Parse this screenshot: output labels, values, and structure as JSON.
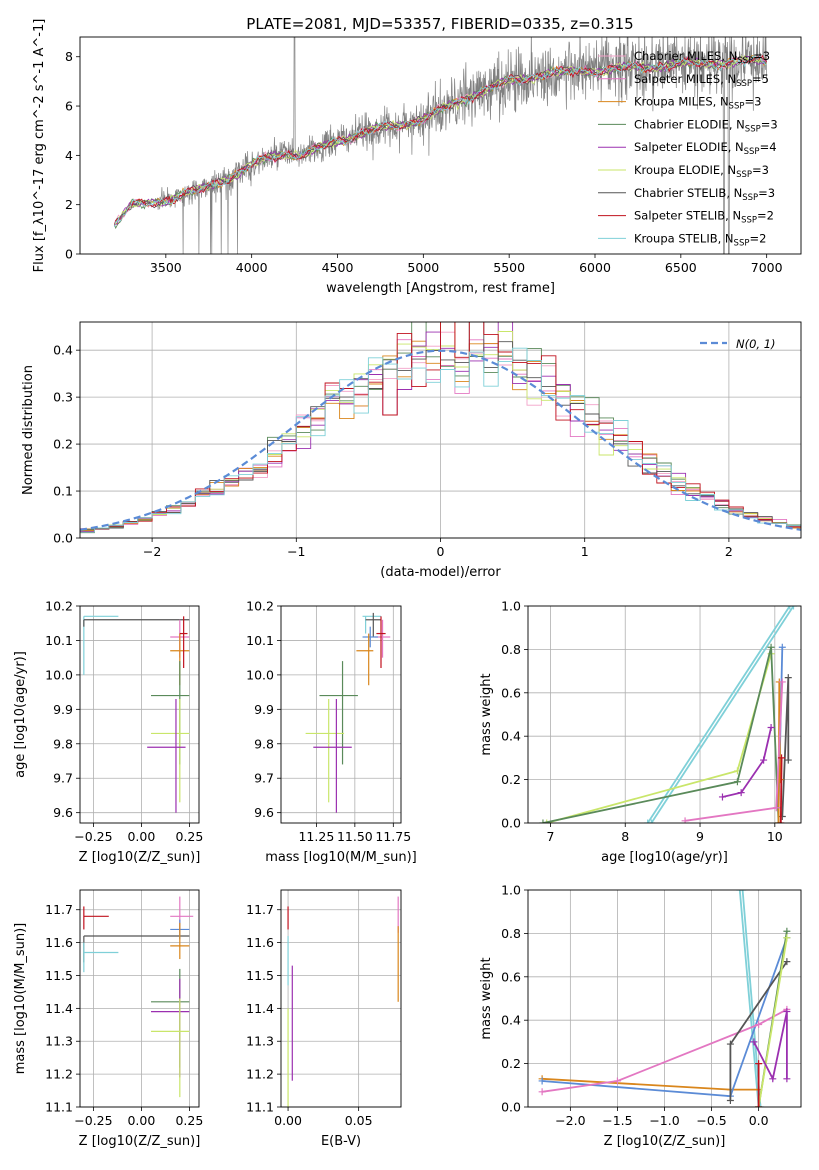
{
  "colors": {
    "data_gray": "#808080",
    "normal_curve": "#5b8bd6",
    "series": {
      "chabrier_miles": "#f2a0c8",
      "salpeter_miles": "#e377c2",
      "kroupa_miles": "#d9861c",
      "chabrier_elodie": "#5a8a5a",
      "salpeter_elodie": "#9b30b0",
      "kroupa_elodie": "#c9e66a",
      "chabrier_stelib": "#555555",
      "salpeter_stelib": "#c0121e",
      "kroupa_stelib": "#7fd0d8",
      "blue": "#5b8bd6"
    }
  },
  "chart_data": [
    {
      "id": "spectrum",
      "type": "line",
      "title": "PLATE=2081, MJD=53357, FIBERID=0335, z=0.315",
      "xlabel": "wavelength [Angstrom, rest frame]",
      "ylabel": "Flux [f_λ10^-17 erg cm^-2 s^-1 A^-1]",
      "xlim": [
        3000,
        7200
      ],
      "ylim": [
        0,
        8.8
      ],
      "xticks": [
        3500,
        4000,
        4500,
        5000,
        5500,
        6000,
        6500,
        7000
      ],
      "yticks": [
        0,
        2,
        4,
        6,
        8
      ],
      "legend_position": "top-right",
      "legend": [
        {
          "key": "chabrier_miles",
          "name": "Chabrier MILES, N",
          "sub": "SSP",
          "n": "=3"
        },
        {
          "key": "salpeter_miles",
          "name": "Salpeter MILES, N",
          "sub": "SSP",
          "n": "=5"
        },
        {
          "key": "kroupa_miles",
          "name": "Kroupa MILES, N",
          "sub": "SSP",
          "n": "=3"
        },
        {
          "key": "chabrier_elodie",
          "name": "Chabrier ELODIE, N",
          "sub": "SSP",
          "n": "=3"
        },
        {
          "key": "salpeter_elodie",
          "name": "Salpeter ELODIE, N",
          "sub": "SSP",
          "n": "=4"
        },
        {
          "key": "kroupa_elodie",
          "name": "Kroupa ELODIE, N",
          "sub": "SSP",
          "n": "=3"
        },
        {
          "key": "chabrier_stelib",
          "name": "Chabrier STELIB, N",
          "sub": "SSP",
          "n": "=3"
        },
        {
          "key": "salpeter_stelib",
          "name": "Salpeter STELIB, N",
          "sub": "SSP",
          "n": "=2"
        },
        {
          "key": "kroupa_stelib",
          "name": "Kroupa STELIB, N",
          "sub": "SSP",
          "n": "=2"
        }
      ],
      "model_continuum": {
        "x": [
          3200,
          3300,
          3500,
          3700,
          3900,
          4000,
          4100,
          4200,
          4300,
          4400,
          4500,
          4700,
          4900,
          5000,
          5100,
          5300,
          5500,
          5700,
          5900,
          6100,
          6300,
          6500,
          6700,
          6900,
          7000
        ],
        "y": [
          1.2,
          1.95,
          2.2,
          2.6,
          3.2,
          3.6,
          3.9,
          4.1,
          4.0,
          4.3,
          4.6,
          5.0,
          5.3,
          5.5,
          5.8,
          6.5,
          7.0,
          7.3,
          7.4,
          7.5,
          7.6,
          7.7,
          7.75,
          7.8,
          7.85
        ]
      }
    },
    {
      "id": "residuals",
      "type": "histogram",
      "xlabel": "(data-model)/error",
      "ylabel": "Normed distribution",
      "xlim": [
        -2.5,
        2.5
      ],
      "ylim": [
        0,
        0.46
      ],
      "xticks": [
        -2,
        -1,
        0,
        1,
        2
      ],
      "yticks": [
        0.0,
        0.1,
        0.2,
        0.3,
        0.4
      ],
      "grid": true,
      "legend_position": "top-right",
      "legend_label": "N(0, 1)",
      "bins": 50
    },
    {
      "id": "age_vs_Z",
      "type": "errorbar",
      "xlabel": "Z [log10(Z/Z_sun)]",
      "ylabel": "age  [log10(age/yr)]",
      "xlim": [
        -0.32,
        0.3
      ],
      "ylim": [
        9.57,
        10.2
      ],
      "xticks": [
        -0.25,
        0.0,
        0.25
      ],
      "yticks": [
        9.6,
        9.7,
        9.8,
        9.9,
        10.0,
        10.1,
        10.2
      ],
      "grid": true,
      "points": [
        {
          "series": "kroupa_stelib",
          "x": -0.3,
          "y": 10.17,
          "xerr": [
            0,
            0.18
          ],
          "yerr": [
            0.17,
            0.0
          ]
        },
        {
          "series": "chabrier_stelib",
          "x": -0.3,
          "y": 10.16,
          "xerr": [
            0,
            0.55
          ],
          "yerr": [
            0.02,
            0.0
          ]
        },
        {
          "series": "salpeter_miles",
          "x": 0.2,
          "y": 10.11,
          "xerr": [
            0.05,
            0.05
          ],
          "yerr": [
            0.06,
            0.05
          ]
        },
        {
          "series": "kroupa_miles",
          "x": 0.2,
          "y": 10.07,
          "xerr": [
            0.05,
            0.05
          ],
          "yerr": [
            0.1,
            0.05
          ]
        },
        {
          "series": "salpeter_stelib",
          "x": 0.22,
          "y": 10.12,
          "xerr": [
            0.02,
            0.02
          ],
          "yerr": [
            0.1,
            0.05
          ]
        },
        {
          "series": "chabrier_elodie",
          "x": 0.2,
          "y": 9.94,
          "xerr": [
            0.15,
            0.05
          ],
          "yerr": [
            0.2,
            0.1
          ]
        },
        {
          "series": "kroupa_elodie",
          "x": 0.2,
          "y": 9.83,
          "xerr": [
            0.15,
            0.05
          ],
          "yerr": [
            0.2,
            0.1
          ]
        },
        {
          "series": "salpeter_elodie",
          "x": 0.18,
          "y": 9.79,
          "xerr": [
            0.15,
            0.05
          ],
          "yerr": [
            0.19,
            0.14
          ]
        }
      ]
    },
    {
      "id": "age_vs_mass",
      "type": "errorbar",
      "xlabel": "mass [log10(M/M_sun)]",
      "xlim": [
        11.02,
        11.8
      ],
      "ylim": [
        9.57,
        10.2
      ],
      "xticks": [
        11.25,
        11.5,
        11.75
      ],
      "yticks": [
        9.6,
        9.7,
        9.8,
        9.9,
        10.0,
        10.1,
        10.2
      ],
      "grid": true,
      "points": [
        {
          "series": "kroupa_stelib",
          "x": 11.57,
          "y": 10.17,
          "xerr": [
            0.02,
            0.1
          ],
          "yerr": [
            0.05,
            0.0
          ]
        },
        {
          "series": "chabrier_stelib",
          "x": 11.62,
          "y": 10.16,
          "xerr": [
            0.05,
            0.05
          ],
          "yerr": [
            0.05,
            0.02
          ]
        },
        {
          "series": "salpeter_miles",
          "x": 11.68,
          "y": 10.11,
          "xerr": [
            0.05,
            0.05
          ],
          "yerr": [
            0.06,
            0.05
          ]
        },
        {
          "series": "blue",
          "x": 11.6,
          "y": 10.11,
          "xerr": [
            0.05,
            0.05
          ],
          "yerr": [
            0.03,
            0.03
          ]
        },
        {
          "series": "kroupa_miles",
          "x": 11.59,
          "y": 10.07,
          "xerr": [
            0.08,
            0.03
          ],
          "yerr": [
            0.1,
            0.05
          ]
        },
        {
          "series": "salpeter_stelib",
          "x": 11.67,
          "y": 10.12,
          "xerr": [
            0.03,
            0.03
          ],
          "yerr": [
            0.1,
            0.05
          ]
        },
        {
          "series": "chabrier_elodie",
          "x": 11.42,
          "y": 9.94,
          "xerr": [
            0.15,
            0.1
          ],
          "yerr": [
            0.2,
            0.1
          ]
        },
        {
          "series": "kroupa_elodie",
          "x": 11.33,
          "y": 9.83,
          "xerr": [
            0.15,
            0.1
          ],
          "yerr": [
            0.2,
            0.1
          ]
        },
        {
          "series": "salpeter_elodie",
          "x": 11.38,
          "y": 9.79,
          "xerr": [
            0.15,
            0.1
          ],
          "yerr": [
            0.19,
            0.14
          ]
        }
      ]
    },
    {
      "id": "mass_weight_vs_age",
      "type": "line",
      "xlabel": "age  [log10(age/yr)]",
      "ylabel": "mass weight",
      "xlim": [
        6.7,
        10.35
      ],
      "ylim": [
        0,
        1.0
      ],
      "xticks": [
        7,
        8,
        9,
        10
      ],
      "yticks": [
        0.0,
        0.2,
        0.4,
        0.6,
        0.8,
        1.0
      ],
      "grid": true,
      "series": [
        {
          "series": "kroupa_stelib",
          "x": [
            8.3,
            10.2
          ],
          "y": [
            0.0,
            1.0
          ]
        },
        {
          "series": "kroupa_stelib",
          "x": [
            8.35,
            10.25
          ],
          "y": [
            0.0,
            1.0
          ]
        },
        {
          "series": "kroupa_elodie",
          "x": [
            6.95,
            9.5,
            9.95
          ],
          "y": [
            0.0,
            0.24,
            0.78
          ]
        },
        {
          "series": "chabrier_elodie",
          "x": [
            6.9,
            9.5,
            9.95,
            10.05
          ],
          "y": [
            0.0,
            0.19,
            0.81,
            0.0
          ]
        },
        {
          "series": "chabrier_stelib",
          "x": [
            10.1,
            10.18,
            10.18
          ],
          "y": [
            0.03,
            0.67,
            0.29
          ]
        },
        {
          "series": "salpeter_elodie",
          "x": [
            9.3,
            9.55,
            9.85,
            9.95
          ],
          "y": [
            0.12,
            0.14,
            0.29,
            0.44
          ]
        },
        {
          "series": "blue",
          "x": [
            10.05,
            10.1
          ],
          "y": [
            0.07,
            0.81
          ]
        },
        {
          "series": "kroupa_miles",
          "x": [
            10.05,
            10.06,
            10.07
          ],
          "y": [
            0.0,
            0.65,
            0.2
          ]
        },
        {
          "series": "salpeter_miles",
          "x": [
            8.8,
            10.02,
            10.1
          ],
          "y": [
            0.01,
            0.07,
            0.65
          ]
        },
        {
          "series": "salpeter_stelib",
          "x": [
            10.08,
            10.09
          ],
          "y": [
            0.0,
            0.3
          ]
        }
      ]
    },
    {
      "id": "mass_vs_Z",
      "type": "errorbar",
      "xlabel": "Z [log10(Z/Z_sun)]",
      "ylabel": "mass [log10(M/M_sun)]",
      "xlim": [
        -0.32,
        0.3
      ],
      "ylim": [
        11.1,
        11.76
      ],
      "xticks": [
        -0.25,
        0.0,
        0.25
      ],
      "yticks": [
        11.1,
        11.2,
        11.3,
        11.4,
        11.5,
        11.6,
        11.7
      ],
      "grid": true,
      "points": [
        {
          "series": "salpeter_stelib",
          "x": -0.3,
          "y": 11.68,
          "xerr": [
            0,
            0.13
          ],
          "yerr": [
            0.04,
            0.03
          ]
        },
        {
          "series": "chabrier_stelib",
          "x": -0.3,
          "y": 11.62,
          "xerr": [
            0,
            0.55
          ],
          "yerr": [
            0.08,
            0.0
          ]
        },
        {
          "series": "kroupa_stelib",
          "x": -0.3,
          "y": 11.57,
          "xerr": [
            0,
            0.18
          ],
          "yerr": [
            0.06,
            0.03
          ]
        },
        {
          "series": "salpeter_miles",
          "x": 0.2,
          "y": 11.68,
          "xerr": [
            0.05,
            0.07
          ],
          "yerr": [
            0.05,
            0.06
          ]
        },
        {
          "series": "blue",
          "x": 0.2,
          "y": 11.64,
          "xerr": [
            0.05,
            0.05
          ],
          "yerr": [
            0.03,
            0.03
          ]
        },
        {
          "series": "kroupa_miles",
          "x": 0.2,
          "y": 11.59,
          "xerr": [
            0.05,
            0.05
          ],
          "yerr": [
            0.04,
            0.07
          ]
        },
        {
          "series": "chabrier_elodie",
          "x": 0.2,
          "y": 11.42,
          "xerr": [
            0.15,
            0.05
          ],
          "yerr": [
            0.2,
            0.1
          ]
        },
        {
          "series": "salpeter_elodie",
          "x": 0.2,
          "y": 11.39,
          "xerr": [
            0.15,
            0.05
          ],
          "yerr": [
            0.2,
            0.1
          ]
        },
        {
          "series": "kroupa_elodie",
          "x": 0.2,
          "y": 11.33,
          "xerr": [
            0.15,
            0.05
          ],
          "yerr": [
            0.2,
            0.1
          ]
        }
      ]
    },
    {
      "id": "mass_vs_ebv",
      "type": "errorbar",
      "xlabel": "E(B-V)",
      "xlim": [
        -0.005,
        0.08
      ],
      "ylim": [
        11.1,
        11.76
      ],
      "xticks": [
        0.0,
        0.05
      ],
      "yticks": [
        11.1,
        11.2,
        11.3,
        11.4,
        11.5,
        11.6,
        11.7
      ],
      "grid": true,
      "points": [
        {
          "series": "salpeter_stelib",
          "x": 0.0,
          "y": 11.68,
          "xerr": [
            0,
            0
          ],
          "yerr": [
            0.04,
            0.03
          ]
        },
        {
          "series": "kroupa_stelib",
          "x": 0.0,
          "y": 11.55,
          "xerr": [
            0,
            0
          ],
          "yerr": [
            0.08,
            0.07
          ]
        },
        {
          "series": "salpeter_elodie",
          "x": 0.003,
          "y": 11.38,
          "xerr": [
            0,
            0
          ],
          "yerr": [
            0.2,
            0.15
          ]
        },
        {
          "series": "kroupa_elodie",
          "x": 0.0,
          "y": 11.3,
          "xerr": [
            0,
            0
          ],
          "yerr": [
            0.2,
            0.1
          ]
        },
        {
          "series": "salpeter_miles",
          "x": 0.078,
          "y": 11.68,
          "xerr": [
            0,
            0
          ],
          "yerr": [
            0.05,
            0.06
          ]
        },
        {
          "series": "kroupa_miles",
          "x": 0.078,
          "y": 11.55,
          "xerr": [
            0,
            0
          ],
          "yerr": [
            0.13,
            0.1
          ]
        }
      ]
    },
    {
      "id": "mass_weight_vs_Z",
      "type": "line",
      "xlabel": "Z [log10(Z/Z_sun)]",
      "ylabel": "mass weight",
      "xlim": [
        -2.45,
        0.45
      ],
      "ylim": [
        0,
        1.0
      ],
      "xticks": [
        -2.0,
        -1.5,
        -1.0,
        -0.5,
        0.0
      ],
      "yticks": [
        0.0,
        0.2,
        0.4,
        0.6,
        0.8,
        1.0
      ],
      "grid": true,
      "series": [
        {
          "series": "kroupa_stelib",
          "x": [
            -0.2,
            0.0
          ],
          "y": [
            1.0,
            0.0
          ]
        },
        {
          "series": "kroupa_stelib",
          "x": [
            -0.17,
            0.02
          ],
          "y": [
            1.0,
            0.0
          ]
        },
        {
          "series": "kroupa_miles",
          "x": [
            -2.3,
            -0.3,
            0.0
          ],
          "y": [
            0.13,
            0.08,
            0.08
          ]
        },
        {
          "series": "blue",
          "x": [
            -2.3,
            -0.3,
            0.3
          ],
          "y": [
            0.12,
            0.05,
            0.78
          ]
        },
        {
          "series": "salpeter_miles",
          "x": [
            -2.3,
            -1.5,
            0.0,
            0.3
          ],
          "y": [
            0.07,
            0.12,
            0.38,
            0.45
          ]
        },
        {
          "series": "chabrier_stelib",
          "x": [
            -0.3,
            -0.3,
            0.3
          ],
          "y": [
            0.03,
            0.29,
            0.67
          ]
        },
        {
          "series": "chabrier_elodie",
          "x": [
            0.0,
            0.3
          ],
          "y": [
            0.0,
            0.81
          ]
        },
        {
          "series": "kroupa_elodie",
          "x": [
            0.0,
            0.3
          ],
          "y": [
            0.0,
            0.78
          ]
        },
        {
          "series": "salpeter_elodie",
          "x": [
            -0.05,
            0.15,
            0.3,
            0.3
          ],
          "y": [
            0.3,
            0.13,
            0.44,
            0.13
          ]
        },
        {
          "series": "salpeter_stelib",
          "x": [
            0.0,
            0.0
          ],
          "y": [
            0.0,
            0.2
          ]
        }
      ]
    }
  ]
}
